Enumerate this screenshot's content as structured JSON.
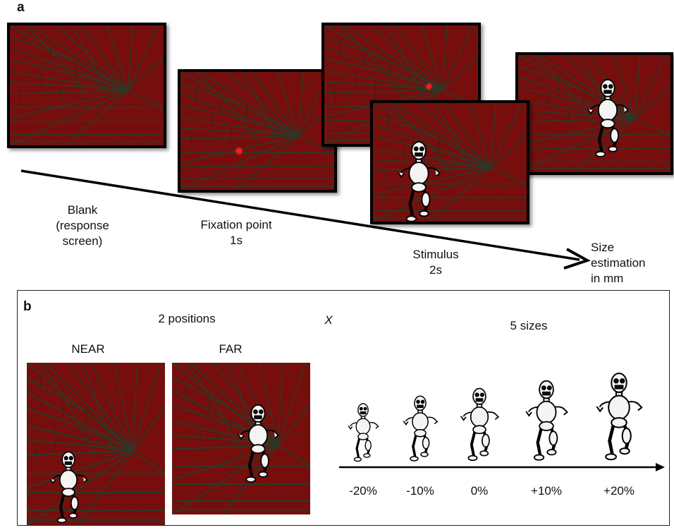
{
  "panel_a": {
    "letter": "a",
    "labels": {
      "blank": [
        "Blank",
        "(response",
        "screen)"
      ],
      "fixation": [
        "Fixation point",
        "1s"
      ],
      "stimulus": [
        "Stimulus",
        "2s"
      ],
      "size": [
        "Size",
        "estimation",
        "in mm"
      ]
    }
  },
  "panel_b": {
    "letter": "b",
    "positions_label": "2 positions",
    "times_symbol": "X",
    "sizes_label": "5 sizes",
    "near_label": "NEAR",
    "far_label": "FAR",
    "size_ticks": [
      "-20%",
      "-10%",
      "0%",
      "+10%",
      "+20%"
    ],
    "size_changes_percent": [
      -20,
      -10,
      0,
      10,
      20
    ]
  },
  "colors": {
    "wall": "#7a0c0c",
    "mortar": "#2b3a28",
    "fixation_dot": "#ff1a1a"
  }
}
